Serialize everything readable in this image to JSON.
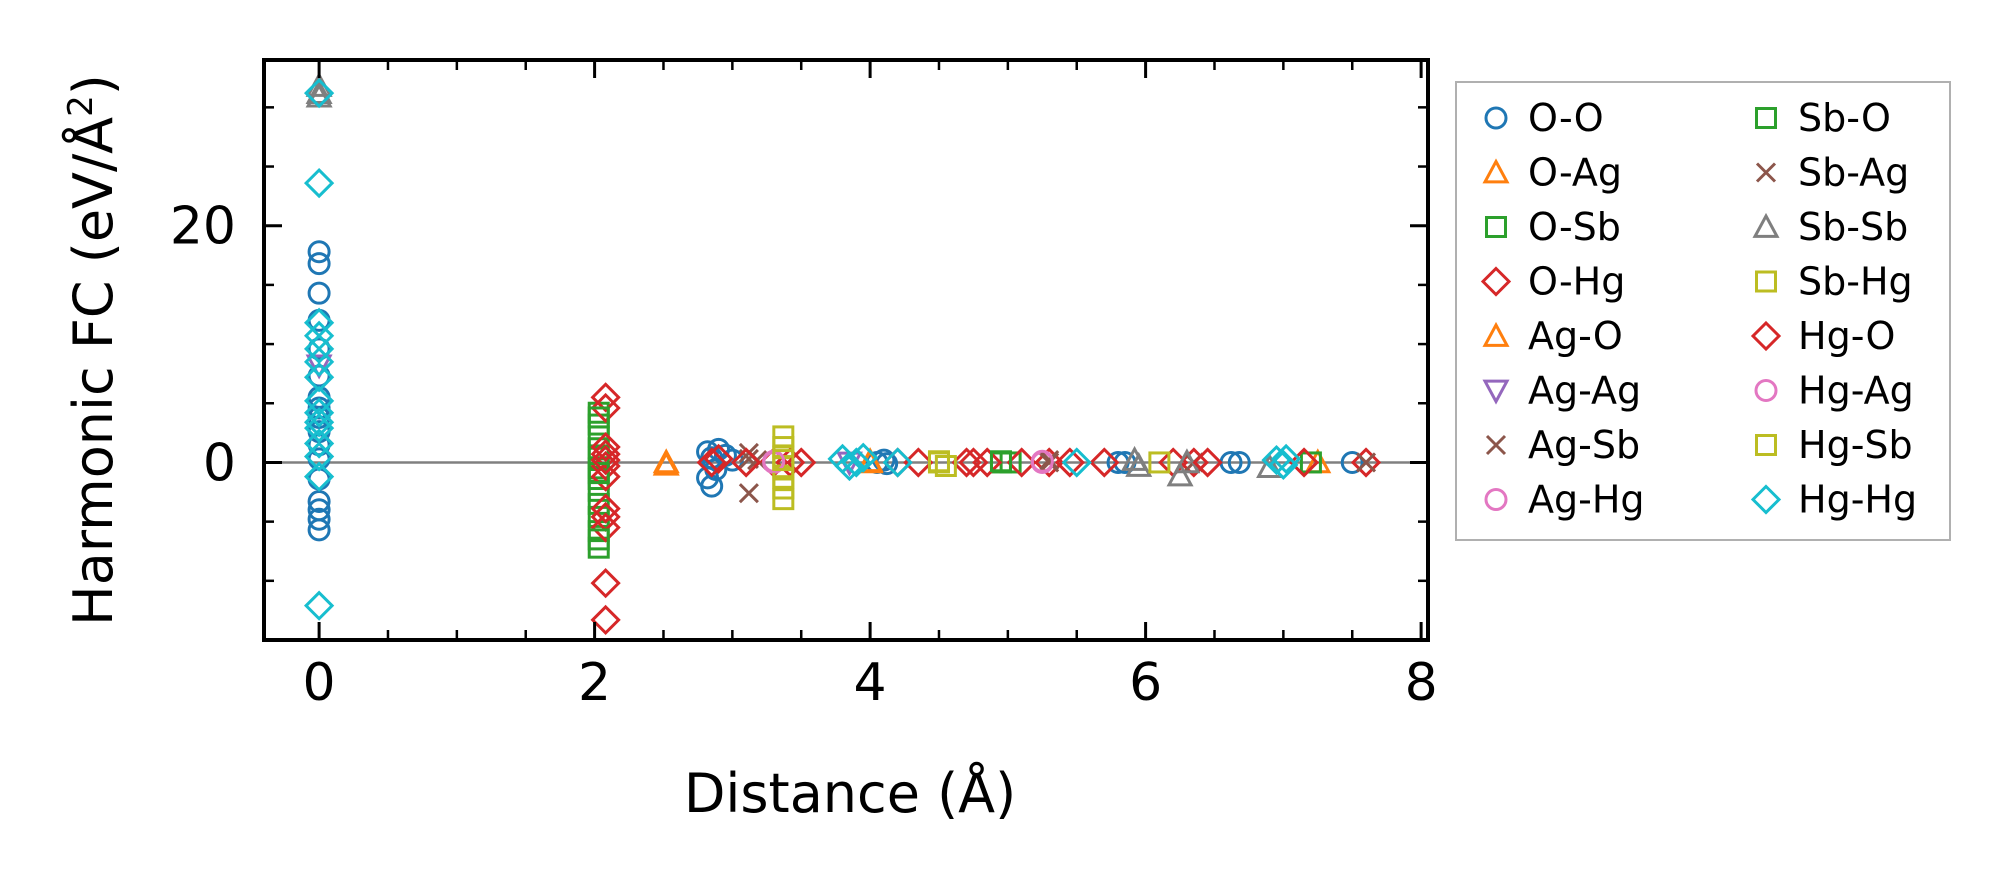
{
  "chart_data": {
    "type": "scatter",
    "title": "",
    "xlabel": "Distance (Å)",
    "ylabel_main": "Harmonic FC (eV/Å",
    "ylabel_sup": "2",
    "ylabel_close": ")",
    "xlim": [
      -0.4,
      8.05
    ],
    "ylim": [
      -15,
      34
    ],
    "xticks": [
      0,
      2,
      4,
      6,
      8
    ],
    "xtick_labels": [
      "0",
      "2",
      "4",
      "6",
      "8"
    ],
    "yticks": [
      0,
      20
    ],
    "ytick_labels": [
      "0",
      "20"
    ],
    "x_minor_step": 0.5,
    "y_minor_step": 5,
    "zero_line": true,
    "legend_position": "outside-right",
    "series": [
      {
        "name": "O-O",
        "marker": "circle",
        "color": "#1f77b4",
        "points": [
          [
            0,
            17.8
          ],
          [
            0,
            16.8
          ],
          [
            0,
            14.3
          ],
          [
            0,
            12
          ],
          [
            0,
            9.6
          ],
          [
            0,
            7.3
          ],
          [
            0,
            5.5
          ],
          [
            0,
            4.6
          ],
          [
            0,
            3.8
          ],
          [
            0,
            2.6
          ],
          [
            0,
            1.5
          ],
          [
            0,
            0.3
          ],
          [
            0,
            -1.4
          ],
          [
            0,
            -3.3
          ],
          [
            0,
            -4
          ],
          [
            0,
            -4.8
          ],
          [
            0,
            -5.7
          ],
          [
            2.82,
            0.9
          ],
          [
            2.85,
            0.4
          ],
          [
            2.88,
            -0.6
          ],
          [
            2.82,
            -1.3
          ],
          [
            2.85,
            -2
          ],
          [
            2.9,
            1.1
          ],
          [
            2.95,
            0.6
          ],
          [
            3.0,
            0.2
          ],
          [
            4.05,
            0
          ],
          [
            4.1,
            0.2
          ],
          [
            4.12,
            -0.1
          ],
          [
            5.8,
            0
          ],
          [
            5.85,
            0
          ],
          [
            6.62,
            0
          ],
          [
            6.68,
            0
          ],
          [
            7.5,
            0
          ]
        ]
      },
      {
        "name": "O-Ag",
        "marker": "triangle-up",
        "color": "#ff7f0e",
        "points": [
          [
            2.52,
            -0.2
          ],
          [
            4.0,
            0
          ],
          [
            7.25,
            0
          ]
        ]
      },
      {
        "name": "O-Sb",
        "marker": "square",
        "color": "#2ca02c",
        "points": [
          [
            2.03,
            4.2
          ],
          [
            2.03,
            3.2
          ],
          [
            2.03,
            2.2
          ],
          [
            2.03,
            1.2
          ],
          [
            2.03,
            0.4
          ],
          [
            2.03,
            -0.5
          ],
          [
            2.03,
            -1.4
          ],
          [
            2.03,
            -2.4
          ],
          [
            2.03,
            -3.5
          ],
          [
            2.03,
            -4.6
          ],
          [
            2.03,
            -5.8
          ],
          [
            2.03,
            -7.2
          ],
          [
            4.95,
            0
          ],
          [
            5.02,
            0
          ],
          [
            7.2,
            0
          ]
        ]
      },
      {
        "name": "O-Hg",
        "marker": "diamond",
        "color": "#d62728",
        "points": [
          [
            2.08,
            5.5
          ],
          [
            2.08,
            4.6
          ],
          [
            2.08,
            1.3
          ],
          [
            2.08,
            0.7
          ],
          [
            2.08,
            -0.3
          ],
          [
            2.08,
            -1.2
          ],
          [
            2.08,
            -3.9
          ],
          [
            2.08,
            -4.6
          ],
          [
            2.08,
            -5.5
          ],
          [
            2.08,
            -10.2
          ],
          [
            2.08,
            -13.3
          ],
          [
            2.85,
            0
          ],
          [
            2.9,
            0.3
          ],
          [
            3.3,
            0
          ],
          [
            3.42,
            0
          ],
          [
            4.35,
            0
          ],
          [
            4.7,
            0
          ],
          [
            4.85,
            0
          ],
          [
            5.1,
            0
          ],
          [
            5.3,
            0
          ],
          [
            5.7,
            0
          ],
          [
            6.2,
            0
          ],
          [
            6.35,
            0
          ],
          [
            7.15,
            0
          ],
          [
            7.6,
            0
          ]
        ]
      },
      {
        "name": "Ag-O",
        "marker": "triangle-up",
        "color": "#ff7f0e",
        "points": [
          [
            2.52,
            0
          ],
          [
            4.0,
            0.1
          ]
        ]
      },
      {
        "name": "Ag-Ag",
        "marker": "triangle-down",
        "color": "#9467bd",
        "points": [
          [
            0,
            8.2
          ],
          [
            3.85,
            0
          ]
        ]
      },
      {
        "name": "Ag-Sb",
        "marker": "x",
        "color": "#8c564b",
        "points": [
          [
            3.12,
            0.8
          ],
          [
            3.12,
            -2.6
          ],
          [
            3.18,
            0.2
          ],
          [
            5.3,
            0
          ],
          [
            6.35,
            0
          ],
          [
            7.6,
            0
          ]
        ]
      },
      {
        "name": "Ag-Hg",
        "marker": "circle",
        "color": "#e377c2",
        "points": [
          [
            3.3,
            0
          ],
          [
            5.25,
            0
          ]
        ]
      },
      {
        "name": "Sb-O",
        "marker": "square",
        "color": "#2ca02c",
        "points": [
          [
            2.03,
            3.8
          ],
          [
            2.03,
            -0.9
          ],
          [
            2.03,
            -6.5
          ],
          [
            4.95,
            0.1
          ]
        ]
      },
      {
        "name": "Sb-Ag",
        "marker": "x",
        "color": "#8c564b",
        "points": [
          [
            3.12,
            0.3
          ],
          [
            5.3,
            0.2
          ]
        ]
      },
      {
        "name": "Sb-Sb",
        "marker": "triangle-up",
        "color": "#7f7f7f",
        "points": [
          [
            0,
            31.8
          ],
          [
            0,
            31.2
          ],
          [
            0,
            30.9
          ],
          [
            5.92,
            0.2
          ],
          [
            5.95,
            -0.3
          ],
          [
            6.25,
            -1.1
          ],
          [
            6.3,
            0
          ],
          [
            6.9,
            -0.4
          ]
        ]
      },
      {
        "name": "Sb-Hg",
        "marker": "square",
        "color": "#bcbd22",
        "points": [
          [
            3.37,
            2.2
          ],
          [
            3.37,
            1.3
          ],
          [
            3.37,
            0.5
          ],
          [
            3.37,
            -0.4
          ],
          [
            3.37,
            -1.3
          ],
          [
            3.37,
            -2.2
          ],
          [
            3.37,
            -3.1
          ],
          [
            4.5,
            0
          ],
          [
            4.55,
            -0.3
          ],
          [
            6.1,
            0
          ]
        ]
      },
      {
        "name": "Hg-O",
        "marker": "diamond",
        "color": "#d62728",
        "points": [
          [
            2.08,
            0.2
          ],
          [
            3.1,
            0
          ],
          [
            3.5,
            0
          ],
          [
            4.2,
            0
          ],
          [
            4.75,
            0
          ],
          [
            5.45,
            0
          ],
          [
            6.45,
            0
          ]
        ]
      },
      {
        "name": "Hg-Ag",
        "marker": "circle",
        "color": "#e377c2",
        "points": [
          [
            3.3,
            0.1
          ],
          [
            5.25,
            0.1
          ]
        ]
      },
      {
        "name": "Hg-Sb",
        "marker": "square",
        "color": "#bcbd22",
        "points": [
          [
            3.37,
            0.2
          ],
          [
            4.5,
            0.1
          ]
        ]
      },
      {
        "name": "Hg-Hg",
        "marker": "diamond",
        "color": "#17becf",
        "points": [
          [
            0,
            31.2
          ],
          [
            0,
            23.6
          ],
          [
            0,
            11.8
          ],
          [
            0,
            10.7
          ],
          [
            0,
            9.6
          ],
          [
            0,
            8.5
          ],
          [
            0,
            7.2
          ],
          [
            0,
            5.2
          ],
          [
            0,
            4.2
          ],
          [
            0,
            3.4
          ],
          [
            0,
            2.9
          ],
          [
            0,
            1.6
          ],
          [
            0,
            0.5
          ],
          [
            0,
            -1.2
          ],
          [
            0,
            -12.1
          ],
          [
            3.8,
            0.3
          ],
          [
            3.85,
            -0.3
          ],
          [
            3.9,
            0
          ],
          [
            3.95,
            0.4
          ],
          [
            4.2,
            0
          ],
          [
            5.5,
            0
          ],
          [
            6.95,
            0.2
          ],
          [
            7.0,
            -0.2
          ],
          [
            7.02,
            0.3
          ]
        ]
      }
    ]
  }
}
